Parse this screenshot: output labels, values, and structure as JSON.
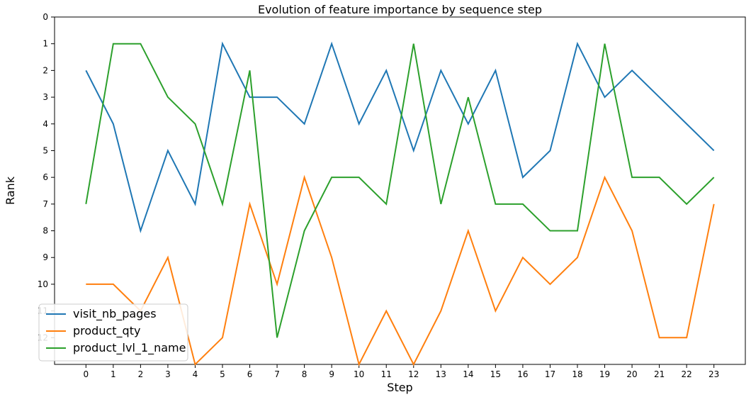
{
  "chart_data": {
    "type": "line",
    "title": "Evolution of feature importance by sequence step",
    "xlabel": "Step",
    "ylabel": "Rank",
    "x": [
      0,
      1,
      2,
      3,
      4,
      5,
      6,
      7,
      8,
      9,
      10,
      11,
      12,
      13,
      14,
      15,
      16,
      17,
      18,
      19,
      20,
      21,
      22,
      23
    ],
    "xlim": [
      -1.15,
      24.15
    ],
    "ylim": [
      13,
      0
    ],
    "y_inverted": true,
    "yticks": [
      0,
      1,
      2,
      3,
      4,
      5,
      6,
      7,
      8,
      9,
      10,
      11,
      12
    ],
    "grid": false,
    "legend_position": "lower-left",
    "series": [
      {
        "name": "visit_nb_pages",
        "color": "#1f77b4",
        "values": [
          2,
          4,
          8,
          5,
          7,
          1,
          3,
          3,
          4,
          1,
          4,
          2,
          5,
          2,
          4,
          2,
          6,
          5,
          1,
          3,
          2,
          3,
          4,
          5
        ]
      },
      {
        "name": "product_qty",
        "color": "#ff7f0e",
        "values": [
          10,
          10,
          11,
          9,
          13,
          12,
          7,
          10,
          6,
          9,
          13,
          11,
          13,
          11,
          8,
          11,
          9,
          10,
          9,
          6,
          8,
          12,
          12,
          7
        ]
      },
      {
        "name": "product_lvl_1_name",
        "color": "#2ca02c",
        "values": [
          7,
          1,
          1,
          3,
          4,
          7,
          2,
          12,
          8,
          6,
          6,
          7,
          1,
          7,
          3,
          7,
          7,
          8,
          8,
          1,
          6,
          6,
          7,
          6
        ]
      }
    ]
  }
}
